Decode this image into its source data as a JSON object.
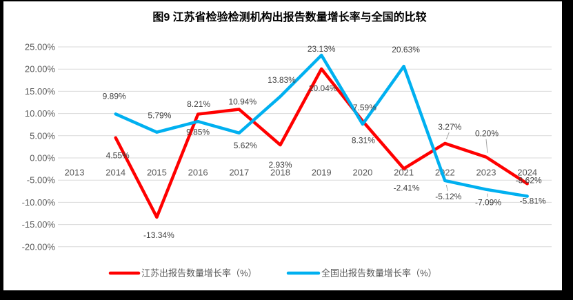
{
  "title": "图9  江苏省检验检测机构出报告数量增长率与全国的比较",
  "colors": {
    "jiangsu_line": "#FF0000",
    "national_line": "#00B0F0",
    "gridline": "#D9D9D9",
    "axis_text": "#595959",
    "data_label_text": "#404040",
    "title_text": "#000000",
    "photo_border": "#000000",
    "leader_line": "#A6A6A6"
  },
  "chart_data": {
    "type": "line",
    "categories": [
      "2013",
      "2014",
      "2015",
      "2016",
      "2017",
      "2018",
      "2019",
      "2020",
      "2021",
      "2022",
      "2023",
      "2024"
    ],
    "title": "图9  江苏省检验检测机构出报告数量增长率与全国的比较",
    "xlabel": "",
    "ylabel": "",
    "ylim": [
      -20,
      25
    ],
    "grid": true,
    "legend_position": "bottom",
    "y_axis_ticks": [
      {
        "label": "25.00%",
        "value": 25
      },
      {
        "label": "20.00%",
        "value": 20
      },
      {
        "label": "15.00%",
        "value": 15
      },
      {
        "label": "10.00%",
        "value": 10
      },
      {
        "label": "5.00%",
        "value": 5
      },
      {
        "label": "0.00%",
        "value": 0
      },
      {
        "label": "-5.00%",
        "value": -5
      },
      {
        "label": "-10.00%",
        "value": -10
      },
      {
        "label": "-15.00%",
        "value": -15
      },
      {
        "label": "-20.00%",
        "value": -20
      }
    ],
    "series": [
      {
        "name": "江苏出报告数量增长率（%）",
        "color": "#FF0000",
        "points": [
          {
            "year": "2014",
            "value": 4.55,
            "label": "4.55%",
            "dx": 3,
            "dy": 26
          },
          {
            "year": "2015",
            "value": -13.34,
            "label": "-13.34%",
            "dx": 3,
            "dy": 26
          },
          {
            "year": "2016",
            "value": 9.85,
            "label": "9.85%",
            "dx": 0,
            "dy": 26
          },
          {
            "year": "2017",
            "value": 10.94,
            "label": "10.94%",
            "dx": 5,
            "dy": -11
          },
          {
            "year": "2018",
            "value": 2.93,
            "label": "2.93%",
            "dx": 0,
            "dy": 29
          },
          {
            "year": "2019",
            "value": 20.04,
            "label": "20.04%",
            "dx": 2,
            "dy": 28
          },
          {
            "year": "2020",
            "value": 8.31,
            "label": "8.31%",
            "dx": 1,
            "dy": 28
          },
          {
            "year": "2021",
            "value": -2.41,
            "label": "-2.41%",
            "dx": 4,
            "dy": 28
          },
          {
            "year": "2022",
            "value": 3.27,
            "label": "3.27%",
            "dx": 7,
            "dy": -24,
            "leader": true
          },
          {
            "year": "2023",
            "value": 0.2,
            "label": "0.20%",
            "dx": 1,
            "dy": -34,
            "leader": true
          },
          {
            "year": "2024",
            "value": -5.81,
            "label": "-5.81%",
            "dx": 8,
            "dy": 25
          }
        ]
      },
      {
        "name": "全国出报告数量增长率（%）",
        "color": "#00B0F0",
        "points": [
          {
            "year": "2014",
            "value": 9.89,
            "label": "9.89%",
            "dx": -2,
            "dy": -26
          },
          {
            "year": "2015",
            "value": 5.79,
            "label": "5.79%",
            "dx": 4,
            "dy": -24
          },
          {
            "year": "2016",
            "value": 8.21,
            "label": "8.21%",
            "dx": 1,
            "dy": -25
          },
          {
            "year": "2017",
            "value": 5.62,
            "label": "5.62%",
            "dx": 9,
            "dy": 18
          },
          {
            "year": "2018",
            "value": 13.83,
            "label": "13.83%",
            "dx": 2,
            "dy": -24
          },
          {
            "year": "2019",
            "value": 23.13,
            "label": "23.13%",
            "dx": 0,
            "dy": -9
          },
          {
            "year": "2020",
            "value": 7.59,
            "label": "7.59%",
            "dx": 3,
            "dy": -24
          },
          {
            "year": "2021",
            "value": 20.63,
            "label": "20.63%",
            "dx": 3,
            "dy": -24
          },
          {
            "year": "2022",
            "value": -5.12,
            "label": "-5.12%",
            "dx": 5,
            "dy": 23,
            "leader": true
          },
          {
            "year": "2023",
            "value": -7.09,
            "label": "-7.09%",
            "dx": 3,
            "dy": 19,
            "leader": true
          },
          {
            "year": "2024",
            "value": -8.62,
            "label": "-8.62%",
            "dx": 2,
            "dy": -23
          }
        ]
      }
    ]
  },
  "legend": {
    "items": [
      {
        "label": "江苏出报告数量增长率（%）"
      },
      {
        "label": "全国出报告数量增长率（%）"
      }
    ]
  }
}
